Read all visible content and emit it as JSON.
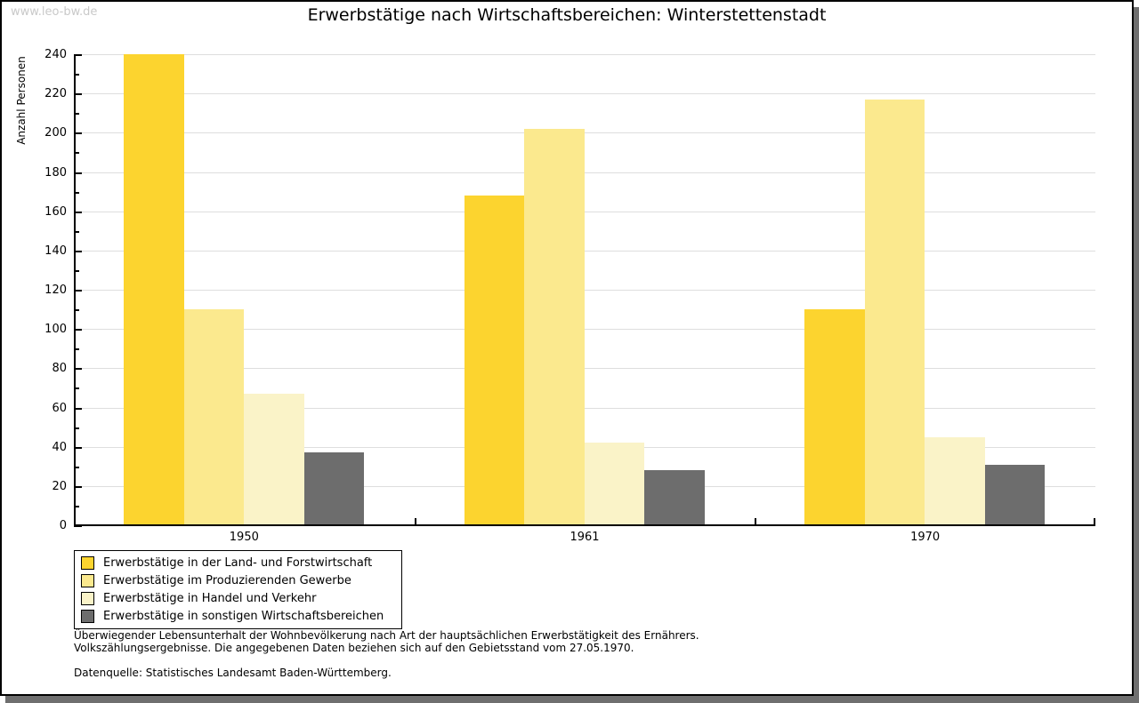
{
  "watermark": "www.leo-bw.de",
  "title": "Erwerbstätige nach Wirtschaftsbereichen: Winterstettenstadt",
  "chart_data": {
    "type": "bar",
    "title": "Erwerbstätige nach Wirtschaftsbereichen: Winterstettenstadt",
    "xlabel": "",
    "ylabel": "Anzahl Personen",
    "ylim": [
      0,
      240
    ],
    "ytick_step": 20,
    "yminor_step": 10,
    "grid": "horizontal-major",
    "legend_position": "bottom-left",
    "categories": [
      "1950",
      "1961",
      "1970"
    ],
    "series": [
      {
        "name": "Erwerbstätige in der Land- und Forstwirtschaft",
        "color": "#fcd42f",
        "values": [
          240,
          168,
          110
        ]
      },
      {
        "name": "Erwerbstätige im Produzierenden Gewerbe",
        "color": "#fbe98e",
        "values": [
          110,
          202,
          217
        ]
      },
      {
        "name": "Erwerbstätige in Handel und Verkehr",
        "color": "#faf3c8",
        "values": [
          67,
          42,
          45
        ]
      },
      {
        "name": "Erwerbstätige in sonstigen Wirtschaftsbereichen",
        "color": "#6d6d6d",
        "values": [
          37,
          28,
          31
        ]
      }
    ]
  },
  "colors": {
    "gridline": "#dedede",
    "axis": "#000000",
    "watermark": "#c9c9c9",
    "shadow": "#6f6f6f"
  },
  "footnotes": [
    "Überwiegender Lebensunterhalt der Wohnbevölkerung nach Art der hauptsächlichen Erwerbstätigkeit des Ernährers.",
    "Volkszählungsergebnisse. Die angegebenen Daten beziehen sich auf den Gebietsstand vom 27.05.1970."
  ],
  "source": "Datenquelle: Statistisches Landesamt Baden-Württemberg."
}
